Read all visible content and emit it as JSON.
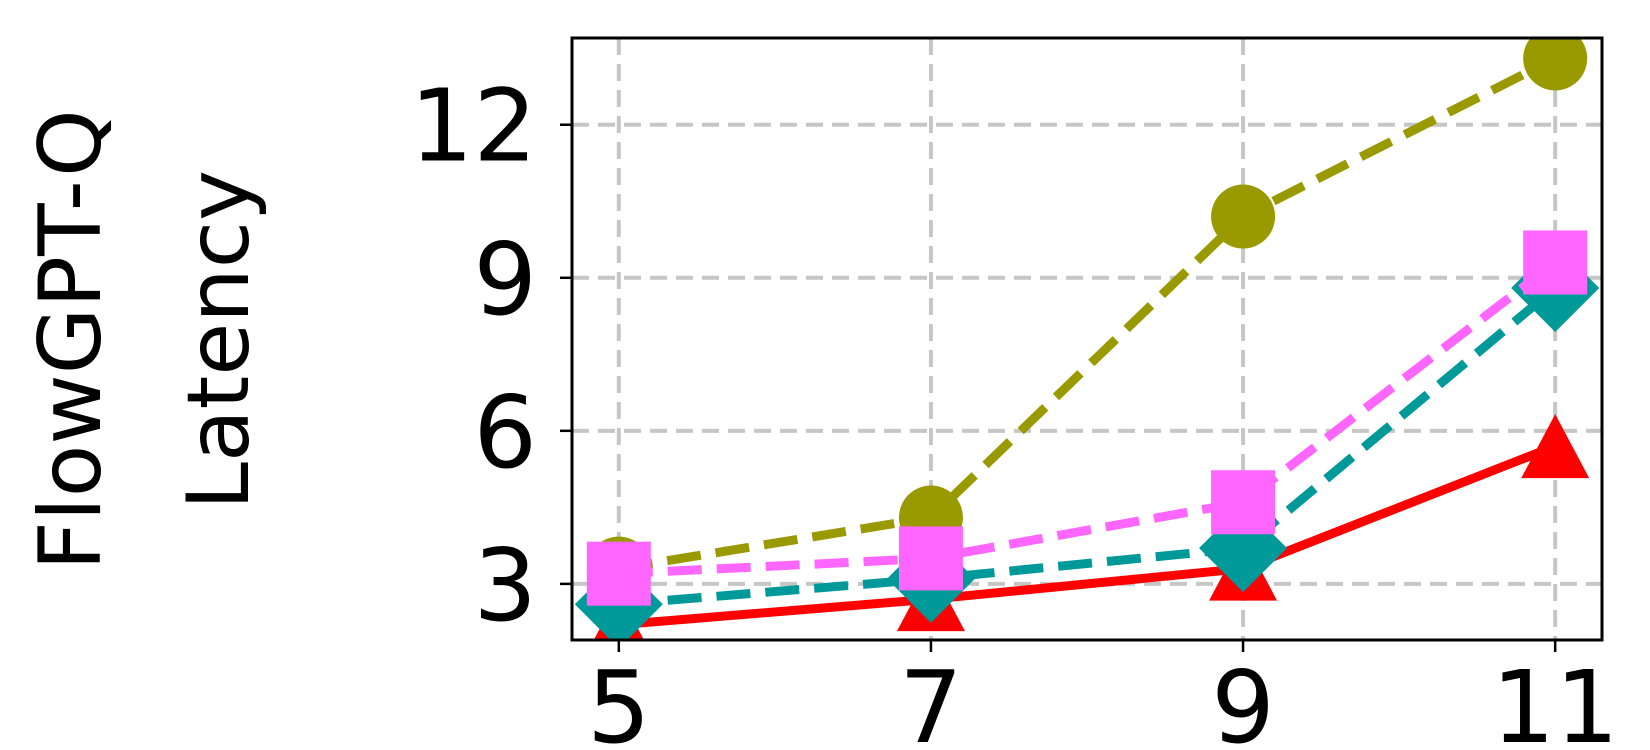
{
  "chart_data": {
    "type": "line",
    "title": "",
    "ylabel": [
      "FlowGPT-Q",
      "Latency"
    ],
    "xlabel": "",
    "x": [
      5,
      7,
      9,
      11
    ],
    "xlim": [
      4.7,
      11.3
    ],
    "ylim": [
      1.9,
      13.7
    ],
    "xticks": [
      5,
      7,
      9,
      11
    ],
    "yticks": [
      3,
      6,
      9,
      12
    ],
    "grid": true,
    "legend": "none",
    "series": [
      {
        "values": [
          3.3,
          4.3,
          10.2,
          13.3
        ],
        "color": "#999900",
        "marker": "circle",
        "linestyle": "dashed"
      },
      {
        "values": [
          2.2,
          2.7,
          3.3,
          5.7
        ],
        "color": "#ff0000",
        "marker": "triangle",
        "linestyle": "solid"
      },
      {
        "values": [
          2.6,
          3.1,
          3.7,
          8.8
        ],
        "color": "#009999",
        "marker": "diamond",
        "linestyle": "dashed"
      },
      {
        "values": [
          3.2,
          3.5,
          4.6,
          9.3
        ],
        "color": "#ff66ff",
        "marker": "square",
        "linestyle": "dashed"
      }
    ]
  }
}
